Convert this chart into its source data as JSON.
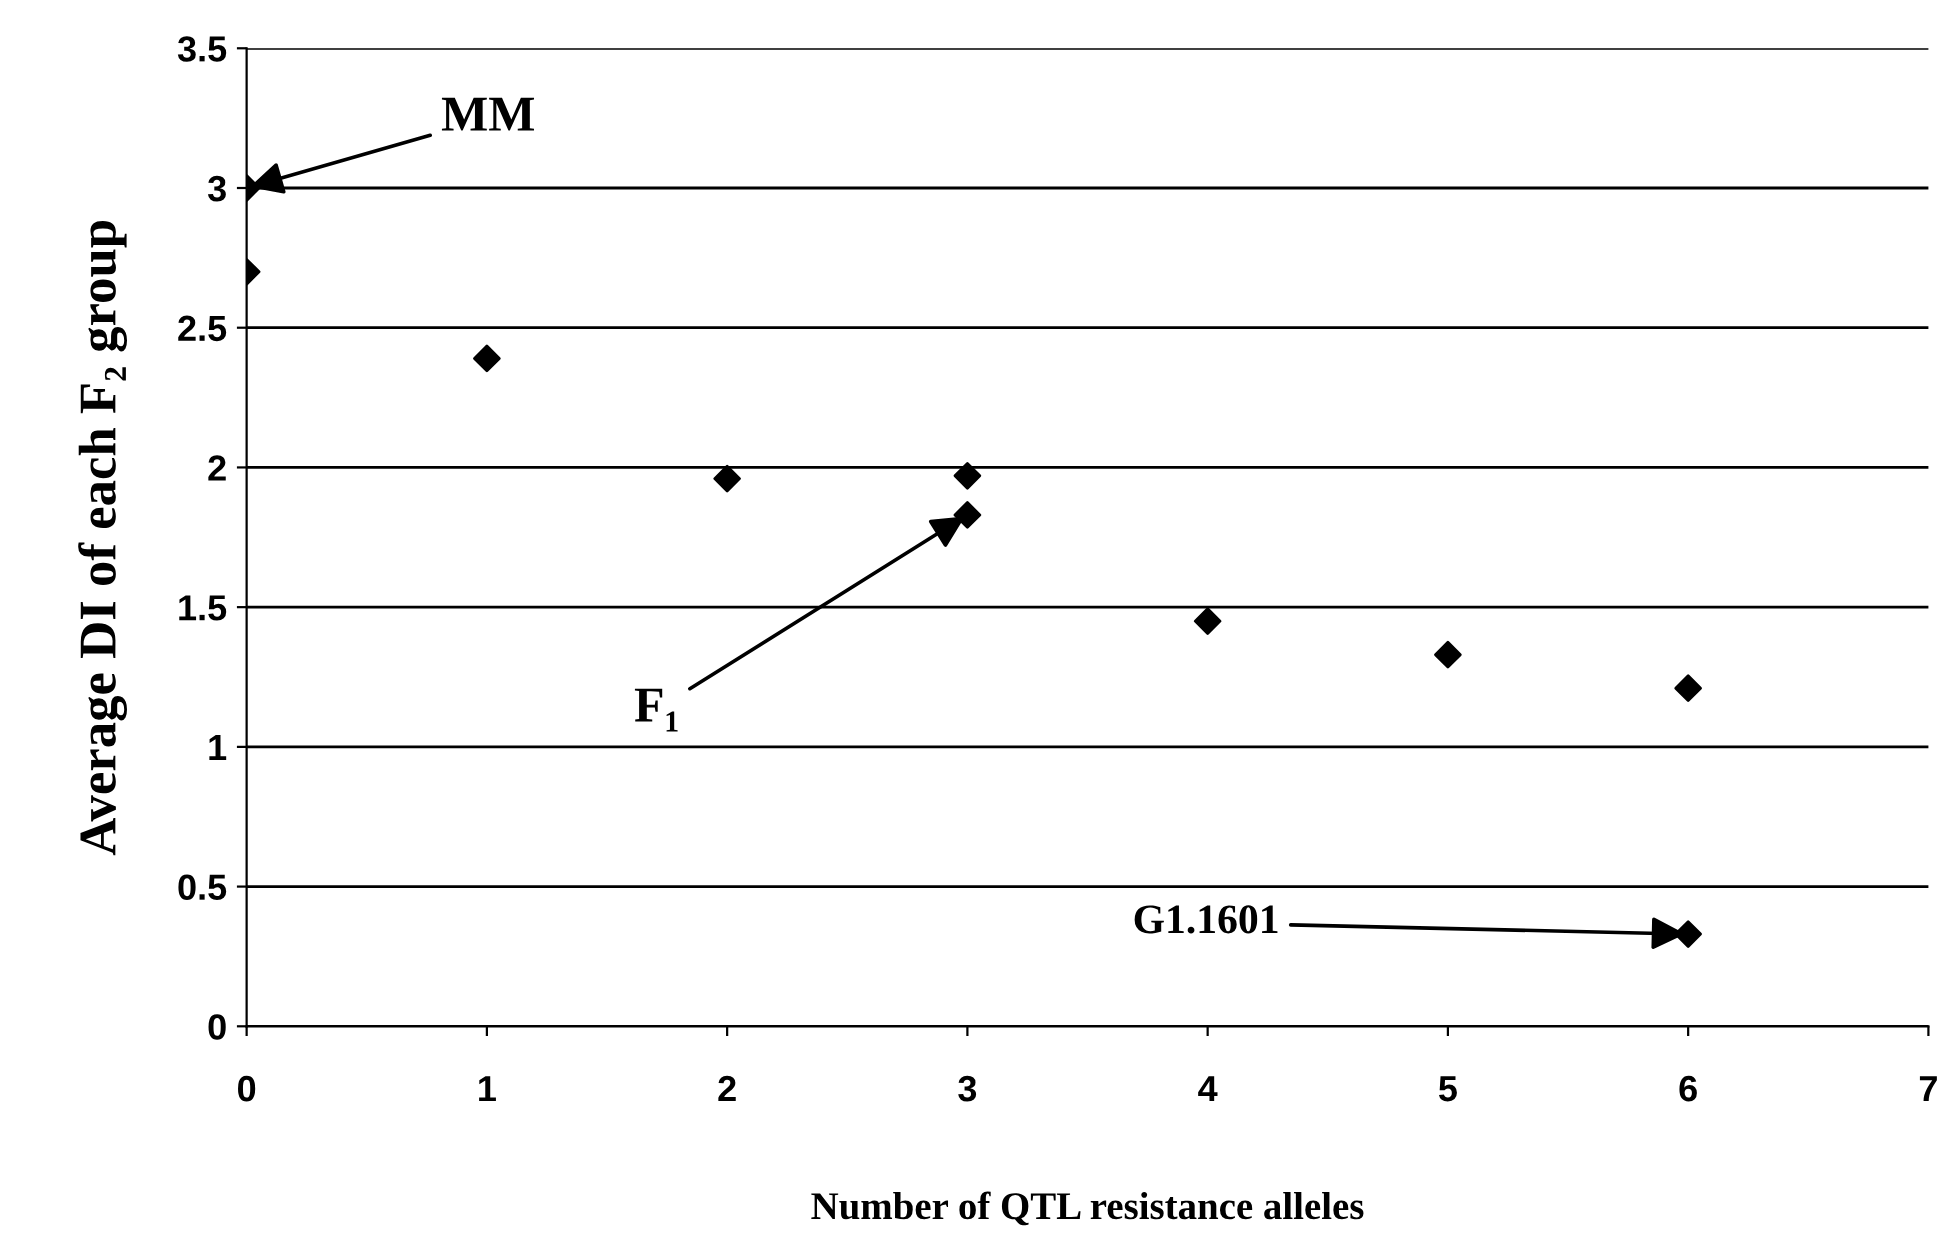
{
  "chart_data": {
    "type": "scatter",
    "xlabel": "Number of QTL resistance alleles",
    "ylabel": "Average DI of each F₂ group",
    "x": [
      0,
      0,
      1,
      2,
      3,
      3,
      4,
      5,
      6,
      6
    ],
    "series": [
      {
        "color": "#000000",
        "values": [
          3.0,
          2.7,
          2.39,
          1.96,
          1.97,
          1.83,
          1.45,
          1.33,
          1.21,
          0.33
        ]
      }
    ],
    "marker": "diamond",
    "xlim": [
      0,
      7
    ],
    "xticks": [
      0,
      1,
      2,
      3,
      4,
      5,
      6,
      7
    ],
    "ylim": [
      0,
      3.5
    ],
    "yticks": [
      0,
      0.5,
      1,
      1.5,
      2,
      2.5,
      3,
      3.5
    ],
    "grid": "y",
    "annotations": [
      {
        "text": "MM",
        "x": 0,
        "y": 3.0
      },
      {
        "text": "F₁",
        "x": 3,
        "y": 1.83
      },
      {
        "text": "G1.1601",
        "x": 6,
        "y": 0.33
      }
    ]
  }
}
